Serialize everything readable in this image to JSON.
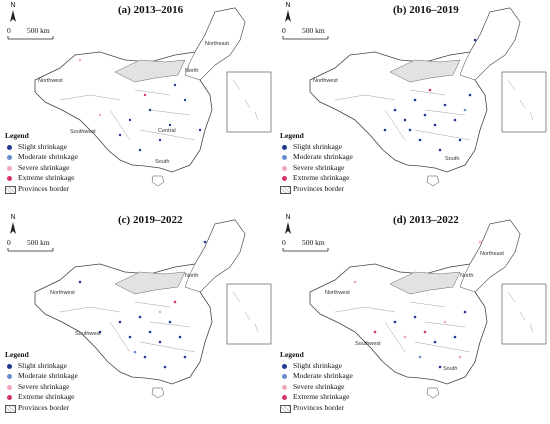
{
  "panels": [
    {
      "title": "(a) 2013–2016"
    },
    {
      "title": "(b) 2016–2019"
    },
    {
      "title": "(c) 2019–2022"
    },
    {
      "title": "(d) 2013–2022"
    }
  ],
  "north_label": "N",
  "scale": {
    "zero": "0",
    "distance": "500 km"
  },
  "regions": [
    "Northeast",
    "North",
    "Northwest",
    "Southwest",
    "Central",
    "South"
  ],
  "legend": {
    "title": "Legend",
    "items": [
      {
        "label": "Slight shrinkage",
        "color": "#1f3a93"
      },
      {
        "label": "Moderate shrinkage",
        "color": "#6a8fcf"
      },
      {
        "label": "Severe shrinkage",
        "color": "#f1a8b8"
      },
      {
        "label": "Extreme shrinkage",
        "color": "#d6336c"
      }
    ],
    "border_label": "Provinces border"
  },
  "colors": {
    "hatch": "#c8c8c8",
    "outline": "#444444"
  }
}
